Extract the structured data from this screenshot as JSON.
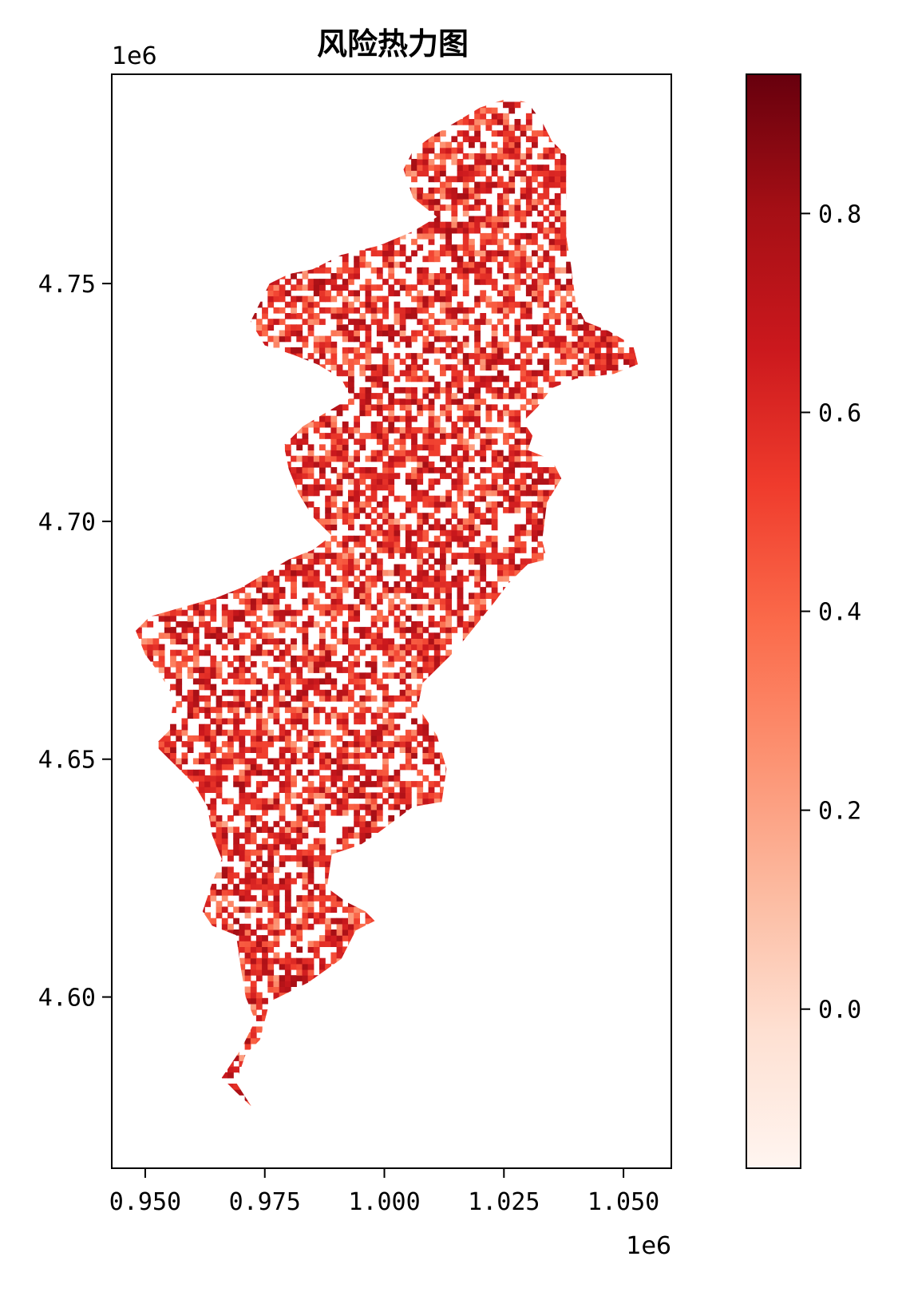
{
  "chart_data": {
    "type": "heatmap",
    "title": "风险热力图",
    "colormap": "Reds",
    "x_offset_label": "1e6",
    "y_offset_label": "1e6",
    "xlim": [
      0.943,
      1.06
    ],
    "ylim": [
      4.564,
      4.794
    ],
    "x_ticks": [
      0.95,
      0.975,
      1.0,
      1.025,
      1.05
    ],
    "x_tick_labels": [
      "0.950",
      "0.975",
      "1.000",
      "1.025",
      "1.050"
    ],
    "y_ticks": [
      4.6,
      4.65,
      4.7,
      4.75
    ],
    "y_tick_labels": [
      "4.60",
      "4.65",
      "4.70",
      "4.75"
    ],
    "colorbar": {
      "range": [
        -0.16,
        0.94
      ],
      "ticks": [
        0.0,
        0.2,
        0.4,
        0.6,
        0.8
      ],
      "tick_labels": [
        "0.0",
        "0.2",
        "0.4",
        "0.6",
        "0.8"
      ]
    },
    "value_range": [
      -0.16,
      0.94
    ],
    "region_outline": [
      [
        0.9722,
        4.577
      ],
      [
        0.969,
        4.582
      ],
      [
        0.971,
        4.588
      ],
      [
        0.974,
        4.591
      ],
      [
        0.976,
        4.599
      ],
      [
        0.984,
        4.603
      ],
      [
        0.991,
        4.608
      ],
      [
        0.994,
        4.614
      ],
      [
        0.998,
        4.616
      ],
      [
        0.996,
        4.618
      ],
      [
        0.992,
        4.62
      ],
      [
        0.988,
        4.623
      ],
      [
        0.989,
        4.63
      ],
      [
        0.995,
        4.632
      ],
      [
        0.998,
        4.634
      ],
      [
        1.006,
        4.64
      ],
      [
        1.012,
        4.641
      ],
      [
        1.013,
        4.648
      ],
      [
        1.011,
        4.655
      ],
      [
        1.007,
        4.661
      ],
      [
        1.008,
        4.666
      ],
      [
        1.015,
        4.673
      ],
      [
        1.023,
        4.683
      ],
      [
        1.026,
        4.687
      ],
      [
        1.03,
        4.691
      ],
      [
        1.034,
        4.692
      ],
      [
        1.033,
        4.696
      ],
      [
        1.034,
        4.704
      ],
      [
        1.037,
        4.709
      ],
      [
        1.035,
        4.713
      ],
      [
        1.03,
        4.715
      ],
      [
        1.031,
        4.718
      ],
      [
        1.029,
        4.721
      ],
      [
        1.032,
        4.724
      ],
      [
        1.035,
        4.728
      ],
      [
        1.04,
        4.73
      ],
      [
        1.048,
        4.731
      ],
      [
        1.053,
        4.733
      ],
      [
        1.052,
        4.737
      ],
      [
        1.047,
        4.74
      ],
      [
        1.042,
        4.742
      ],
      [
        1.04,
        4.746
      ],
      [
        1.039,
        4.754
      ],
      [
        1.038,
        4.76
      ],
      [
        1.038,
        4.77
      ],
      [
        1.038,
        4.777
      ],
      [
        1.035,
        4.78
      ],
      [
        1.033,
        4.784
      ],
      [
        1.03,
        4.788
      ],
      [
        1.026,
        4.789
      ],
      [
        1.02,
        4.787
      ],
      [
        1.015,
        4.784
      ],
      [
        1.01,
        4.781
      ],
      [
        1.006,
        4.778
      ],
      [
        1.004,
        4.774
      ],
      [
        1.006,
        4.768
      ],
      [
        1.011,
        4.764
      ],
      [
        1.006,
        4.761
      ],
      [
        0.999,
        4.758
      ],
      [
        0.991,
        4.756
      ],
      [
        0.985,
        4.753
      ],
      [
        0.98,
        4.752
      ],
      [
        0.976,
        4.75
      ],
      [
        0.974,
        4.746
      ],
      [
        0.972,
        4.742
      ],
      [
        0.975,
        4.737
      ],
      [
        0.981,
        4.735
      ],
      [
        0.986,
        4.733
      ],
      [
        0.991,
        4.73
      ],
      [
        0.993,
        4.726
      ],
      [
        0.988,
        4.723
      ],
      [
        0.983,
        4.72
      ],
      [
        0.979,
        4.716
      ],
      [
        0.98,
        4.711
      ],
      [
        0.982,
        4.706
      ],
      [
        0.985,
        4.701
      ],
      [
        0.989,
        4.697
      ],
      [
        0.985,
        4.694
      ],
      [
        0.98,
        4.692
      ],
      [
        0.975,
        4.689
      ],
      [
        0.97,
        4.686
      ],
      [
        0.965,
        4.684
      ],
      [
        0.958,
        4.682
      ],
      [
        0.951,
        4.68
      ],
      [
        0.948,
        4.677
      ],
      [
        0.95,
        4.672
      ],
      [
        0.953,
        4.668
      ],
      [
        0.956,
        4.663
      ],
      [
        0.955,
        4.656
      ],
      [
        0.952,
        4.653
      ],
      [
        0.955,
        4.65
      ],
      [
        0.96,
        4.645
      ],
      [
        0.963,
        4.64
      ],
      [
        0.964,
        4.634
      ],
      [
        0.966,
        4.629
      ],
      [
        0.964,
        4.624
      ],
      [
        0.962,
        4.618
      ],
      [
        0.964,
        4.615
      ],
      [
        0.969,
        4.613
      ],
      [
        0.97,
        4.606
      ],
      [
        0.971,
        4.6
      ],
      [
        0.973,
        4.595
      ],
      [
        0.97,
        4.589
      ],
      [
        0.966,
        4.583
      ],
      [
        0.969,
        4.58
      ],
      [
        0.9722,
        4.577
      ]
    ],
    "grid_cell_size": 0.0012
  }
}
